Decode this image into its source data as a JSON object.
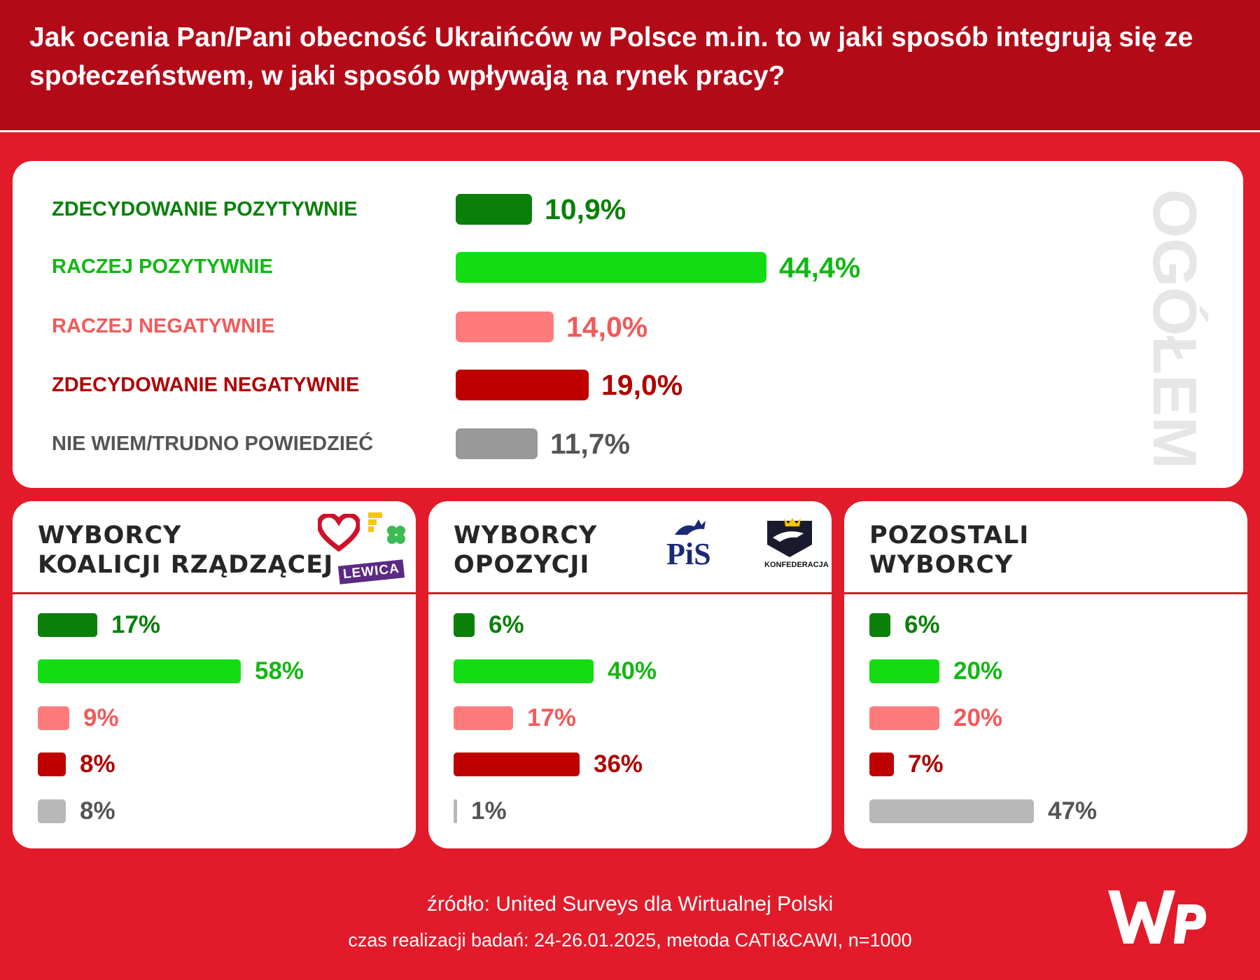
{
  "header": {
    "title": "Jak ocenia Pan/Pani obecność Ukraińców w Polsce m.in. to w jaki sposób integrują się ze społeczeństwem, w jaki sposób wpływają na rynek pracy?"
  },
  "colors": {
    "header_bg": "#b30a18",
    "page_bg": "#e21b2a",
    "strongly_positive": "#0a800a",
    "rather_positive": "#12dd12",
    "rather_negative": "#ff7b7b",
    "strongly_negative": "#c00000",
    "dont_know": "#999999",
    "dont_know_light": "#b8b8b8"
  },
  "chart_data": [
    {
      "type": "bar",
      "orientation": "horizontal",
      "title": "",
      "side_label": "OGÓŁEM",
      "categories": [
        "ZDECYDOWANIE POZYTYWNIE",
        "RACZEJ POZYTYWNIE",
        "RACZEJ NEGATYWNIE",
        "ZDECYDOWANIE NEGATYWNIE",
        "NIE WIEM/TRUDNO POWIEDZIEĆ"
      ],
      "values": [
        10.9,
        44.4,
        14.0,
        19.0,
        11.7
      ],
      "value_labels": [
        "10,9%",
        "44,4%",
        "14,0%",
        "19,0%",
        "11,7%"
      ],
      "unit": "%",
      "xlim": [
        0,
        50
      ]
    },
    {
      "type": "bar",
      "orientation": "horizontal",
      "title_lines": [
        "WYBORCY",
        "KOALICJI RZĄDZĄCEJ"
      ],
      "logos": [
        "heart-icon",
        "trzecia-droga-logo",
        "LEWICA"
      ],
      "values": [
        17,
        58,
        9,
        8,
        8
      ],
      "value_labels": [
        "17%",
        "58%",
        "9%",
        "8%",
        "8%"
      ],
      "unit": "%",
      "xlim": [
        0,
        60
      ]
    },
    {
      "type": "bar",
      "orientation": "horizontal",
      "title_lines": [
        "WYBORCY",
        "OPOZYCJI"
      ],
      "logos": [
        "PiS",
        "KONFEDERACJA"
      ],
      "values": [
        6,
        40,
        17,
        36,
        1
      ],
      "value_labels": [
        "6%",
        "40%",
        "17%",
        "36%",
        "1%"
      ],
      "unit": "%",
      "xlim": [
        0,
        60
      ]
    },
    {
      "type": "bar",
      "orientation": "horizontal",
      "title_lines": [
        "POZOSTALI",
        "WYBORCY"
      ],
      "values": [
        6,
        20,
        20,
        7,
        47
      ],
      "value_labels": [
        "6%",
        "20%",
        "20%",
        "7%",
        "47%"
      ],
      "unit": "%",
      "xlim": [
        0,
        60
      ]
    }
  ],
  "footer": {
    "source": "źródło: United Surveys dla Wirtualnej Polski",
    "method": "czas realizacji badań: 24-26.01.2025, metoda CATI&CAWI, n=1000",
    "logo": "wp-logo"
  }
}
